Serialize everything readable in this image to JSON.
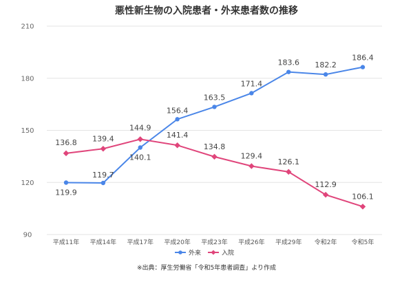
{
  "chart_data": {
    "type": "line",
    "title": "悪性新生物の入院患者・外来患者数の推移",
    "categories": [
      "平成11年",
      "平成14年",
      "平成17年",
      "平成20年",
      "平成23年",
      "平成26年",
      "平成29年",
      "令和2年",
      "令和5年"
    ],
    "series": [
      {
        "name": "外来",
        "color": "#4a86e8",
        "values": [
          119.9,
          119.7,
          140.1,
          156.4,
          163.5,
          171.4,
          183.6,
          182.2,
          186.4
        ],
        "labels": [
          "119.9",
          "119.7",
          "140.1",
          "156.4",
          "163.5",
          "171.4",
          "183.6",
          "182.2",
          "186.4"
        ]
      },
      {
        "name": "入院",
        "color": "#e0457b",
        "values": [
          136.8,
          139.4,
          144.9,
          141.4,
          134.8,
          129.4,
          126.1,
          112.9,
          106.1
        ],
        "labels": [
          "136.8",
          "139.4",
          "144.9",
          "141.4",
          "134.8",
          "129.4",
          "126.1",
          "112.9",
          "106.1"
        ]
      }
    ],
    "yticks": [
      "90",
      "120",
      "150",
      "180",
      "210"
    ],
    "ylim": [
      90,
      210
    ],
    "grid": true,
    "legend_position": "bottom-center"
  },
  "source_note": "※出典：厚生労働省「令和5年患者調査」より作成"
}
